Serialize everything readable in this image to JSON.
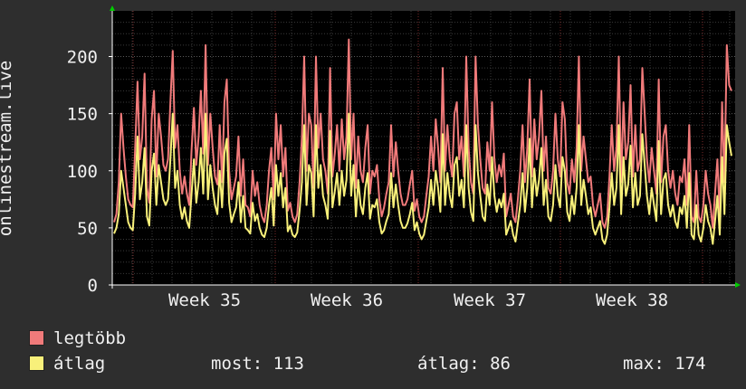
{
  "chart_data": {
    "type": "line",
    "ylabel": "onlinestream.live",
    "ylim": [
      0,
      240
    ],
    "yticks": [
      0,
      50,
      100,
      150,
      200
    ],
    "xlabels": [
      "Week 35",
      "Week 36",
      "Week 37",
      "Week 38"
    ],
    "grid": true,
    "series": [
      {
        "name": "legtöbb",
        "color": "#f07a7a",
        "values": [
          55,
          62,
          90,
          150,
          120,
          95,
          75,
          70,
          68,
          120,
          178,
          110,
          130,
          185,
          85,
          72,
          145,
          170,
          95,
          150,
          130,
          105,
          100,
          110,
          160,
          205,
          120,
          140,
          100,
          80,
          95,
          80,
          70,
          118,
          155,
          105,
          130,
          170,
          115,
          210,
          105,
          150,
          120,
          95,
          88,
          140,
          90,
          160,
          180,
          100,
          75,
          85,
          95,
          130,
          78,
          110,
          70,
          68,
          60,
          100,
          78,
          90,
          70,
          60,
          55,
          70,
          100,
          120,
          75,
          150,
          110,
          140,
          95,
          120,
          65,
          72,
          60,
          55,
          62,
          90,
          130,
          200,
          100,
          150,
          140,
          85,
          200,
          120,
          150,
          110,
          100,
          80,
          190,
          95,
          115,
          140,
          100,
          145,
          110,
          130,
          215,
          110,
          150,
          85,
          130,
          100,
          90,
          120,
          140,
          80,
          100,
          95,
          105,
          75,
          60,
          68,
          80,
          90,
          140,
          95,
          125,
          100,
          80,
          70,
          70,
          75,
          88,
          100,
          65,
          75,
          60,
          55,
          60,
          78,
          95,
          130,
          100,
          145,
          120,
          90,
          190,
          100,
          140,
          110,
          95,
          150,
          160,
          110,
          130,
          95,
          200,
          120,
          90,
          80,
          200,
          140,
          110,
          85,
          80,
          125,
          100,
          160,
          110,
          90,
          105,
          95,
          115,
          60,
          70,
          80,
          60,
          55,
          75,
          100,
          140,
          90,
          120,
          180,
          95,
          145,
          110,
          130,
          170,
          100,
          130,
          85,
          80,
          100,
          150,
          110,
          95,
          160,
          145,
          90,
          80,
          110,
          90,
          120,
          200,
          100,
          130,
          110,
          90,
          95,
          70,
          60,
          70,
          80,
          55,
          50,
          60,
          95,
          140,
          100,
          120,
          200,
          90,
          160,
          110,
          125,
          175,
          95,
          140,
          100,
          110,
          190,
          150,
          110,
          90,
          120,
          100,
          80,
          180,
          90,
          130,
          140,
          100,
          85,
          100,
          80,
          70,
          95,
          90,
          110,
          70,
          140,
          60,
          55,
          100,
          60,
          55,
          70,
          100,
          80,
          70,
          50,
          80,
          110,
          60,
          160,
          90,
          210,
          175,
          170
        ]
      },
      {
        "name": "átlag",
        "color": "#f8f07a",
        "values": [
          45,
          50,
          62,
          100,
          85,
          70,
          55,
          50,
          48,
          80,
          130,
          75,
          90,
          120,
          60,
          52,
          100,
          115,
          70,
          105,
          90,
          75,
          70,
          75,
          110,
          150,
          85,
          100,
          70,
          58,
          68,
          56,
          50,
          80,
          110,
          72,
          90,
          120,
          80,
          150,
          75,
          105,
          85,
          70,
          62,
          100,
          68,
          115,
          128,
          72,
          55,
          62,
          68,
          90,
          55,
          78,
          50,
          48,
          45,
          72,
          56,
          62,
          50,
          44,
          42,
          50,
          70,
          85,
          52,
          105,
          78,
          98,
          68,
          85,
          47,
          52,
          44,
          42,
          46,
          65,
          90,
          140,
          70,
          105,
          98,
          60,
          140,
          85,
          105,
          78,
          70,
          58,
          135,
          68,
          82,
          98,
          70,
          100,
          78,
          92,
          150,
          78,
          105,
          60,
          92,
          70,
          62,
          85,
          98,
          58,
          70,
          68,
          75,
          55,
          45,
          48,
          56,
          62,
          98,
          68,
          88,
          70,
          56,
          50,
          50,
          54,
          62,
          72,
          48,
          55,
          45,
          40,
          44,
          56,
          68,
          92,
          70,
          100,
          85,
          64,
          132,
          70,
          98,
          78,
          68,
          105,
          112,
          78,
          92,
          68,
          140,
          85,
          64,
          56,
          140,
          98,
          78,
          60,
          56,
          88,
          70,
          112,
          78,
          64,
          75,
          68,
          80,
          44,
          50,
          56,
          44,
          38,
          54,
          70,
          98,
          64,
          85,
          128,
          68,
          102,
          78,
          92,
          120,
          70,
          92,
          60,
          56,
          70,
          105,
          78,
          68,
          112,
          100,
          64,
          56,
          78,
          62,
          85,
          140,
          70,
          92,
          78,
          62,
          68,
          50,
          44,
          50,
          56,
          40,
          36,
          44,
          68,
          98,
          70,
          85,
          140,
          62,
          112,
          78,
          88,
          122,
          68,
          98,
          70,
          78,
          132,
          105,
          78,
          62,
          85,
          70,
          56,
          126,
          62,
          92,
          98,
          70,
          60,
          70,
          56,
          50,
          68,
          62,
          78,
          50,
          98,
          44,
          40,
          70,
          44,
          38,
          50,
          70,
          56,
          50,
          36,
          56,
          78,
          44,
          112,
          62,
          140,
          125,
          113
        ]
      }
    ]
  },
  "legend": {
    "items": [
      {
        "label": "legtöbb",
        "color": "#f07a7a"
      },
      {
        "label": "átlag",
        "color": "#f8f07a"
      }
    ],
    "stats": {
      "most": "most: 113",
      "atlag": "átlag: 86",
      "max": "max: 174"
    }
  },
  "colors": {
    "background": "#2e2e2e",
    "plot_background": "#000000",
    "grid": "#444444",
    "axis": "#ffffff",
    "arrow": "#00cc00"
  }
}
